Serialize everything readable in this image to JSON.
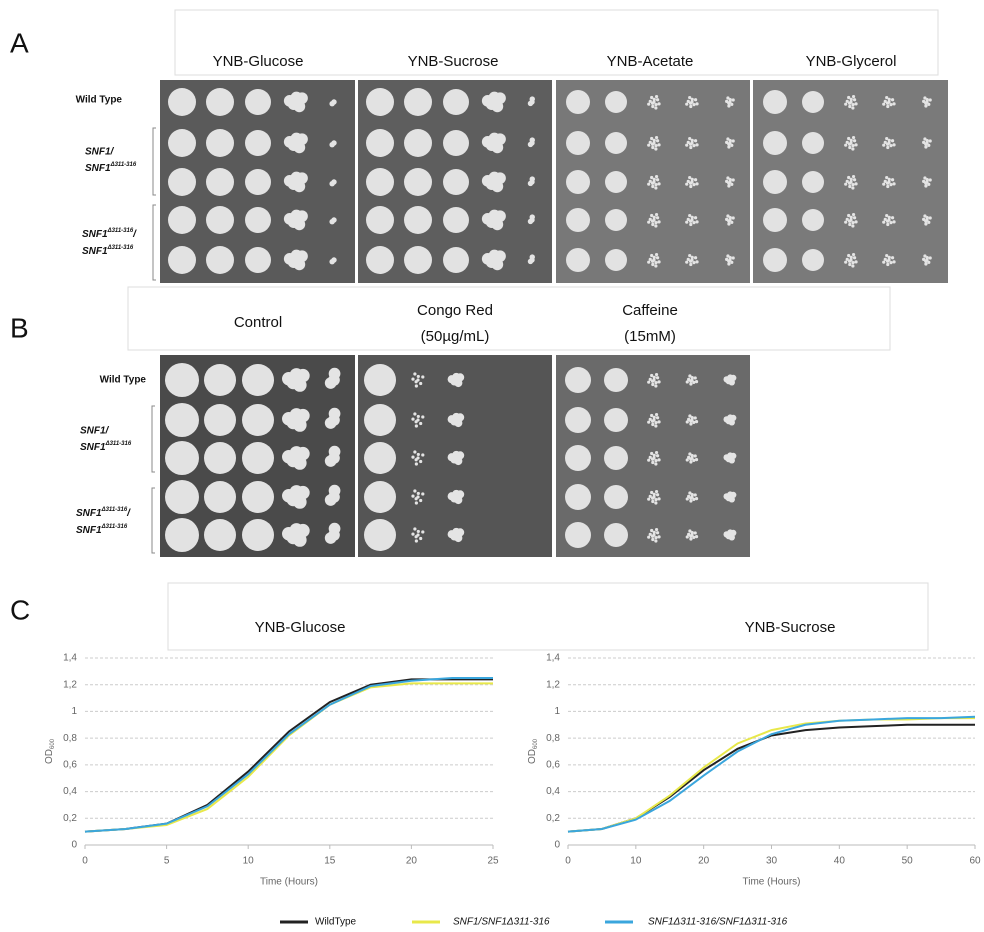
{
  "panel_a": {
    "letter": "A",
    "media": [
      "YNB-Glucose",
      "YNB-Sucrose",
      "YNB-Acetate",
      "YNB-Glycerol"
    ],
    "rows": {
      "wild_type": "Wild Type",
      "het": {
        "line1": "SNF1/",
        "line2": "SNF1",
        "line2_sup": "Δ311-316"
      },
      "hom": {
        "line1": "SNF1",
        "line1_sup": "Δ311-316",
        "line1_end": "/",
        "line2": "SNF1",
        "line2_sup": "Δ311-316"
      }
    }
  },
  "panel_b": {
    "letter": "B",
    "conditions": [
      {
        "name": "Control"
      },
      {
        "name": "Congo Red",
        "dose": "(50µg/mL)"
      },
      {
        "name": "Caffeine",
        "dose": "(15mM)"
      }
    ],
    "rows": {
      "wild_type": "Wild Type",
      "het": {
        "line1": "SNF1/",
        "line2": "SNF1",
        "line2_sup": "Δ311-316"
      },
      "hom": {
        "line1": "SNF1",
        "line1_sup": "Δ311-316",
        "line1_end": "/",
        "line2": "SNF1",
        "line2_sup": "Δ311-316"
      }
    }
  },
  "panel_c": {
    "letter": "C"
  },
  "chart_data": [
    {
      "type": "line",
      "title": "YNB-Glucose",
      "x_label": "Time (Hours)",
      "y_label": "OD",
      "y_label_sub": "600",
      "x": [
        0,
        2.5,
        5,
        7.5,
        10,
        12.5,
        15,
        17.5,
        20,
        22.5,
        25
      ],
      "series": [
        {
          "name": "WildType",
          "color": "#222222",
          "values": [
            0.1,
            0.12,
            0.16,
            0.3,
            0.55,
            0.85,
            1.07,
            1.2,
            1.24,
            1.24,
            1.24
          ]
        },
        {
          "name": "SNF1/SNF1Δ311-316",
          "color": "#e8e84a",
          "values": [
            0.1,
            0.12,
            0.15,
            0.27,
            0.51,
            0.82,
            1.05,
            1.18,
            1.21,
            1.21,
            1.21
          ]
        },
        {
          "name": "SNF1Δ311-316/SNF1Δ311-316",
          "color": "#3aa6dd",
          "values": [
            0.1,
            0.12,
            0.16,
            0.29,
            0.53,
            0.83,
            1.05,
            1.19,
            1.23,
            1.25,
            1.25
          ]
        }
      ],
      "xlim": [
        0,
        25
      ],
      "xticks": [
        0,
        5,
        10,
        15,
        20,
        25
      ],
      "ylim": [
        0,
        1.4
      ],
      "yticks": [
        0,
        {
          "value": 0.2,
          "label": "0,2"
        },
        {
          "value": 0.4,
          "label": "0,4"
        },
        {
          "value": 0.6,
          "label": "0,6"
        },
        {
          "value": 0.8,
          "label": "0,8"
        },
        1,
        {
          "value": 1.2,
          "label": "1,2"
        },
        {
          "value": 1.4,
          "label": "1,4"
        }
      ],
      "grid": true
    },
    {
      "type": "line",
      "title": "YNB-Sucrose",
      "x_label": "Time (Hours)",
      "y_label": "OD",
      "y_label_sub": "600",
      "x": [
        0,
        5,
        10,
        15,
        20,
        25,
        30,
        35,
        40,
        45,
        50,
        55,
        60
      ],
      "series": [
        {
          "color": "#222222",
          "values": [
            0.1,
            0.12,
            0.2,
            0.36,
            0.56,
            0.72,
            0.82,
            0.86,
            0.88,
            0.89,
            0.9,
            0.9,
            0.9
          ]
        },
        {
          "color": "#e8e84a",
          "values": [
            0.1,
            0.12,
            0.2,
            0.37,
            0.58,
            0.76,
            0.86,
            0.91,
            0.93,
            0.94,
            0.94,
            0.95,
            0.95
          ]
        },
        {
          "color": "#3aa6dd",
          "values": [
            0.1,
            0.12,
            0.19,
            0.33,
            0.52,
            0.7,
            0.83,
            0.9,
            0.93,
            0.94,
            0.95,
            0.95,
            0.96
          ]
        }
      ],
      "xlim": [
        0,
        60
      ],
      "xticks": [
        0,
        10,
        20,
        30,
        40,
        50,
        60
      ],
      "ylim": [
        0,
        1.4
      ],
      "yticks": [
        0,
        {
          "value": 0.2,
          "label": "0,2"
        },
        {
          "value": 0.4,
          "label": "0,4"
        },
        {
          "value": 0.6,
          "label": "0,6"
        },
        {
          "value": 0.8,
          "label": "0,8"
        },
        1,
        {
          "value": 1.2,
          "label": "1,2"
        },
        {
          "value": 1.4,
          "label": "1,4"
        }
      ],
      "grid": true
    }
  ]
}
